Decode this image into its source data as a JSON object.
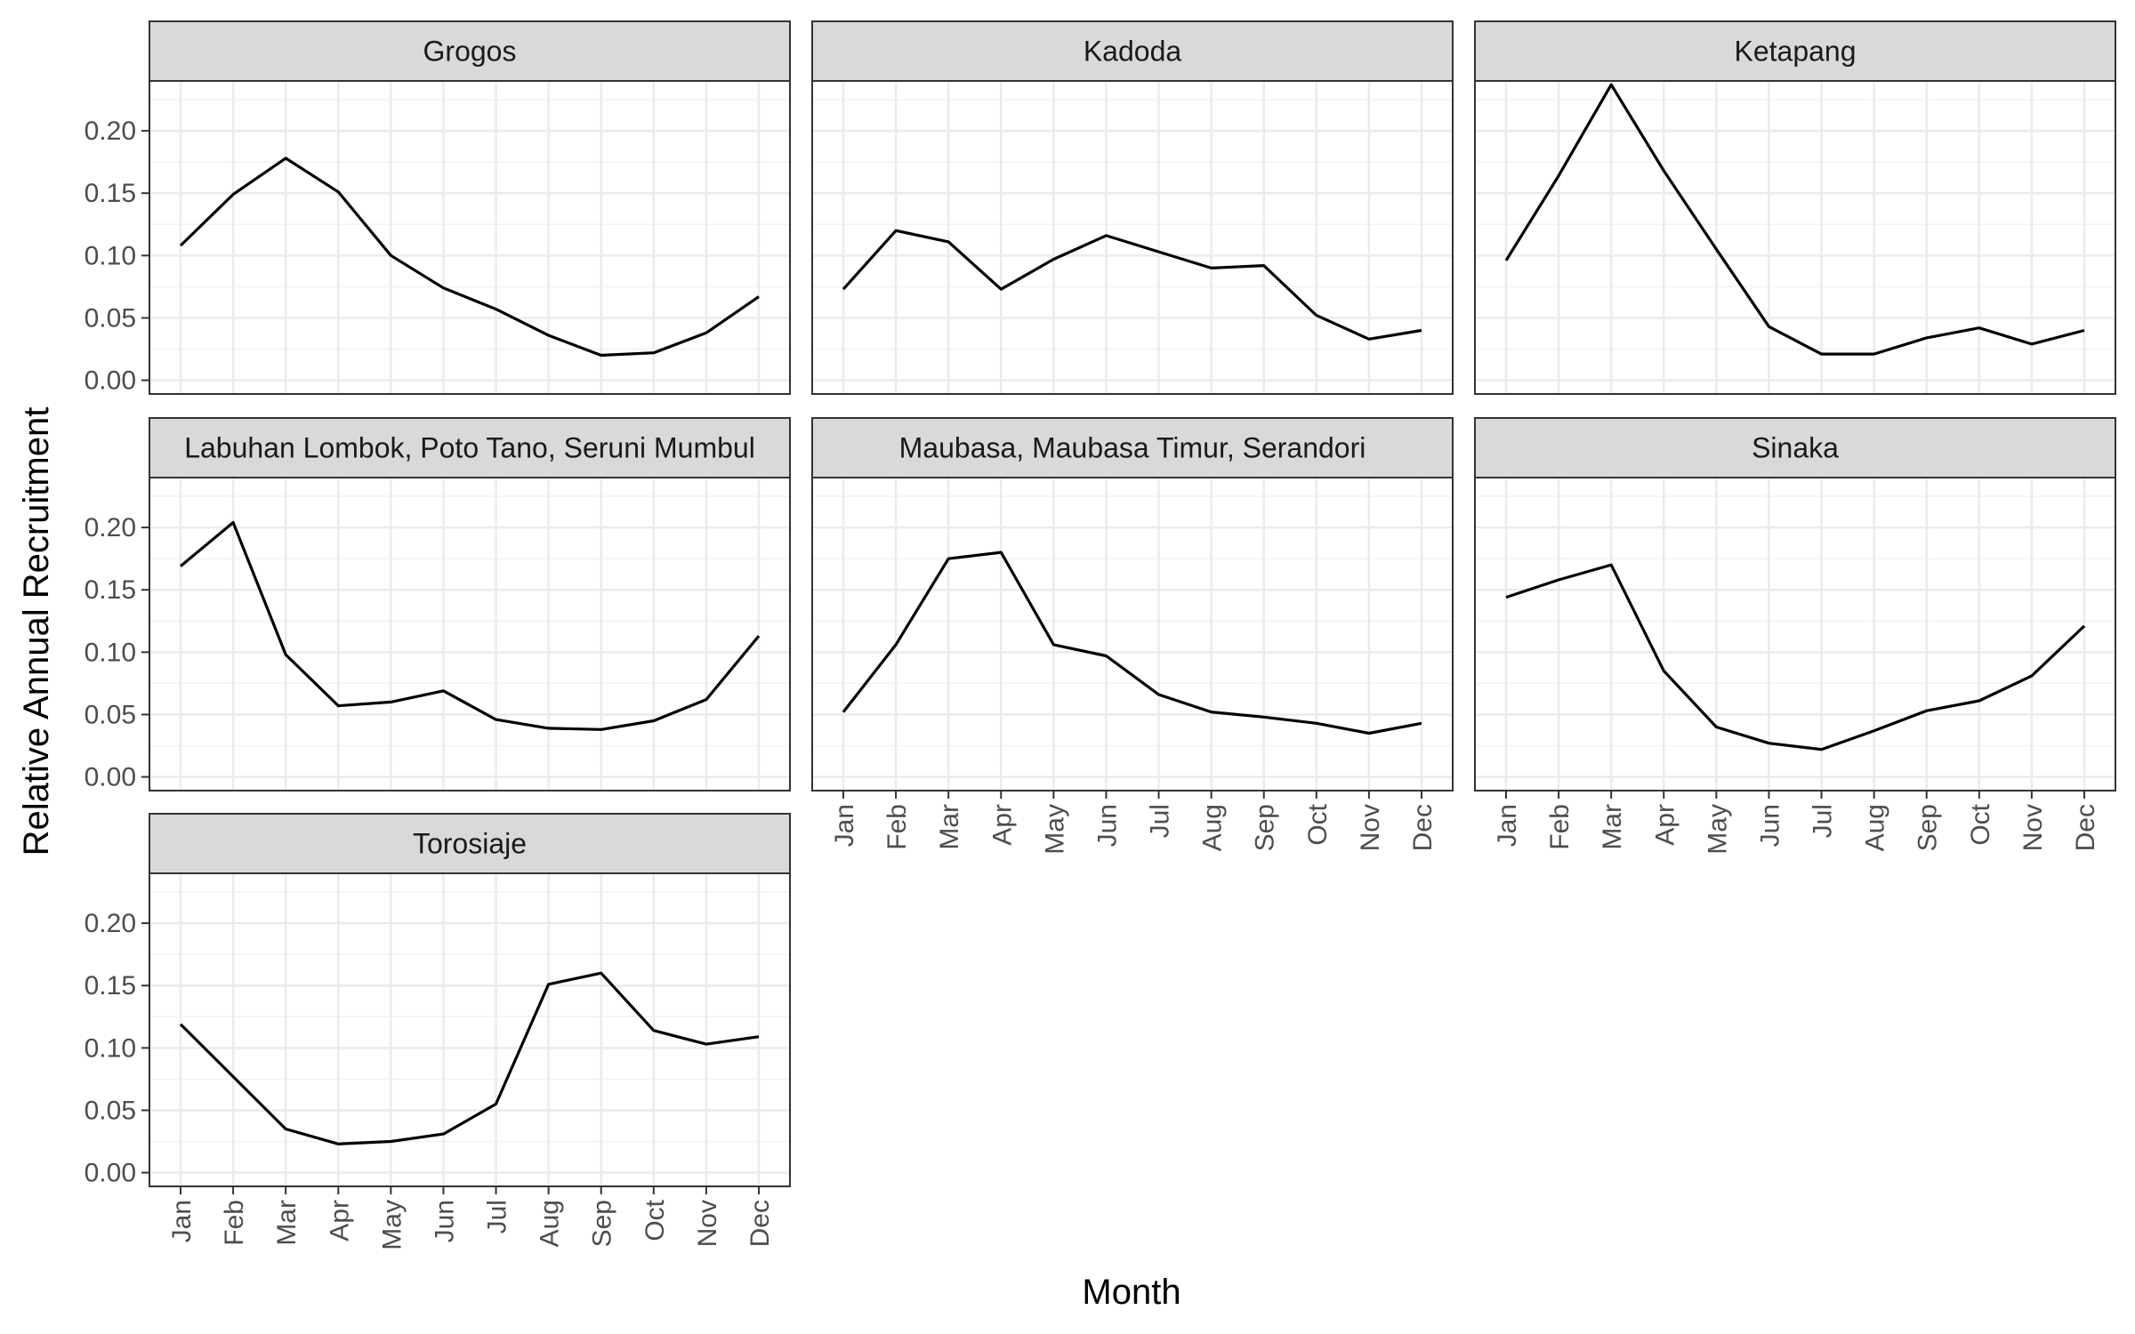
{
  "chart_data": {
    "type": "line",
    "layout": "faceted",
    "xlabel": "Month",
    "ylabel": "Relative Annual Recruitment",
    "x_categories": [
      "Jan",
      "Feb",
      "Mar",
      "Apr",
      "May",
      "Jun",
      "Jul",
      "Aug",
      "Sep",
      "Oct",
      "Nov",
      "Dec"
    ],
    "y_ticks": [
      "0.00",
      "0.05",
      "0.10",
      "0.15",
      "0.20"
    ],
    "y_tick_values": [
      0,
      0.05,
      0.1,
      0.15,
      0.2
    ],
    "ylim": [
      -0.011,
      0.24
    ],
    "grid": true,
    "colors": {
      "line": "#000000",
      "strip": "#d9d9d9",
      "border": "#333333",
      "grid_major": "#ebebeb",
      "grid_minor": "#f2f2f2"
    },
    "facets": [
      {
        "name": "Grogos",
        "values": [
          0.108,
          0.149,
          0.178,
          0.151,
          0.1,
          0.074,
          0.057,
          0.036,
          0.02,
          0.022,
          0.038,
          0.067
        ]
      },
      {
        "name": "Kadoda",
        "values": [
          0.073,
          0.12,
          0.111,
          0.073,
          0.097,
          0.116,
          0.103,
          0.09,
          0.092,
          0.052,
          0.033,
          0.04
        ]
      },
      {
        "name": "Ketapang",
        "values": [
          0.096,
          0.164,
          0.237,
          0.168,
          0.105,
          0.043,
          0.021,
          0.021,
          0.034,
          0.042,
          0.029,
          0.04
        ]
      },
      {
        "name": "Labuhan Lombok, Poto Tano, Seruni Mumbul",
        "values": [
          0.169,
          0.204,
          0.098,
          0.057,
          0.06,
          0.069,
          0.046,
          0.039,
          0.038,
          0.045,
          0.062,
          0.113
        ]
      },
      {
        "name": "Maubasa, Maubasa Timur, Serandori",
        "values": [
          0.052,
          0.106,
          0.175,
          0.18,
          0.106,
          0.097,
          0.066,
          0.052,
          0.048,
          0.043,
          0.035,
          0.043
        ]
      },
      {
        "name": "Sinaka",
        "values": [
          0.144,
          0.158,
          0.17,
          0.085,
          0.04,
          0.027,
          0.022,
          0.037,
          0.053,
          0.061,
          0.081,
          0.121
        ]
      },
      {
        "name": "Torosiaje",
        "values": [
          0.119,
          0.077,
          0.035,
          0.023,
          0.025,
          0.031,
          0.055,
          0.151,
          0.16,
          0.114,
          0.103,
          0.109
        ]
      }
    ]
  }
}
